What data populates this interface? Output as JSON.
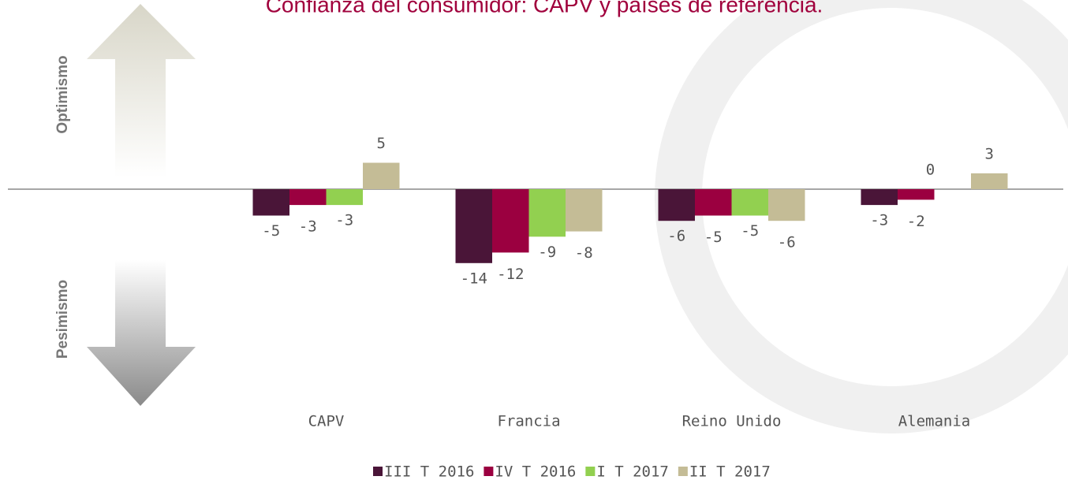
{
  "chart_data": {
    "type": "bar",
    "title": "Confianza del consumidor: CAPV y países de referencia.",
    "annotations": [
      "Optimismo",
      "Pesimismo"
    ],
    "categories": [
      "CAPV",
      "Francia",
      "Reino Unido",
      "Alemania"
    ],
    "series": [
      {
        "name": "III T 2016",
        "color": "#4a1538",
        "values": [
          -5,
          -14,
          -6,
          -3
        ]
      },
      {
        "name": "IV T 2016",
        "color": "#9b0040",
        "values": [
          -3,
          -12,
          -5,
          -2
        ]
      },
      {
        "name": "I T 2017",
        "color": "#92d050",
        "values": [
          -3,
          -9,
          -5,
          0
        ]
      },
      {
        "name": "II T 2017",
        "color": "#c4bc96",
        "values": [
          5,
          -8,
          -6,
          3
        ]
      }
    ],
    "ylim": [
      -20,
      10
    ],
    "legend": "bottom"
  }
}
